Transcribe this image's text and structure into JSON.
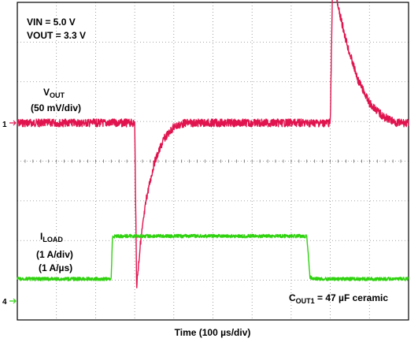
{
  "chart_data": {
    "type": "line",
    "title": "",
    "xlabel": "Time (100 µs/div)",
    "grid": {
      "enabled": true,
      "divisions_x": 10,
      "divisions_y": 8,
      "style": "dotted"
    },
    "x_range_us": [
      0,
      1000
    ],
    "annotations": {
      "vin": "VIN = 5.0 V",
      "vout": "VOUT = 3.3 V",
      "cout_main": "C",
      "cout_sub": "OUT1",
      "cout_rest": " = 47 µF ceramic"
    },
    "series": [
      {
        "name": "V",
        "name_sub": "OUT",
        "scale": "(50 mV/div)",
        "channel": "1",
        "color": "#e0154f",
        "unit": "mV",
        "points": [
          [
            0,
            0
          ],
          [
            300,
            0
          ],
          [
            305,
            -205
          ],
          [
            315,
            -150
          ],
          [
            330,
            -95
          ],
          [
            350,
            -50
          ],
          [
            375,
            -20
          ],
          [
            400,
            -5
          ],
          [
            430,
            0
          ],
          [
            800,
            0
          ],
          [
            806,
            185
          ],
          [
            820,
            145
          ],
          [
            845,
            95
          ],
          [
            870,
            55
          ],
          [
            900,
            25
          ],
          [
            935,
            8
          ],
          [
            970,
            0
          ],
          [
            1000,
            0
          ]
        ]
      },
      {
        "name": "I",
        "name_sub": "LOAD",
        "scale": "(1 A/div)",
        "rate": "(1 A/µs)",
        "channel": "4",
        "color": "#2fd20f",
        "unit": "A",
        "points": [
          [
            0,
            0
          ],
          [
            240,
            0
          ],
          [
            243,
            1.05
          ],
          [
            250,
            1.08
          ],
          [
            740,
            1.08
          ],
          [
            748,
            0.05
          ],
          [
            755,
            0
          ],
          [
            1000,
            0
          ]
        ]
      }
    ]
  }
}
